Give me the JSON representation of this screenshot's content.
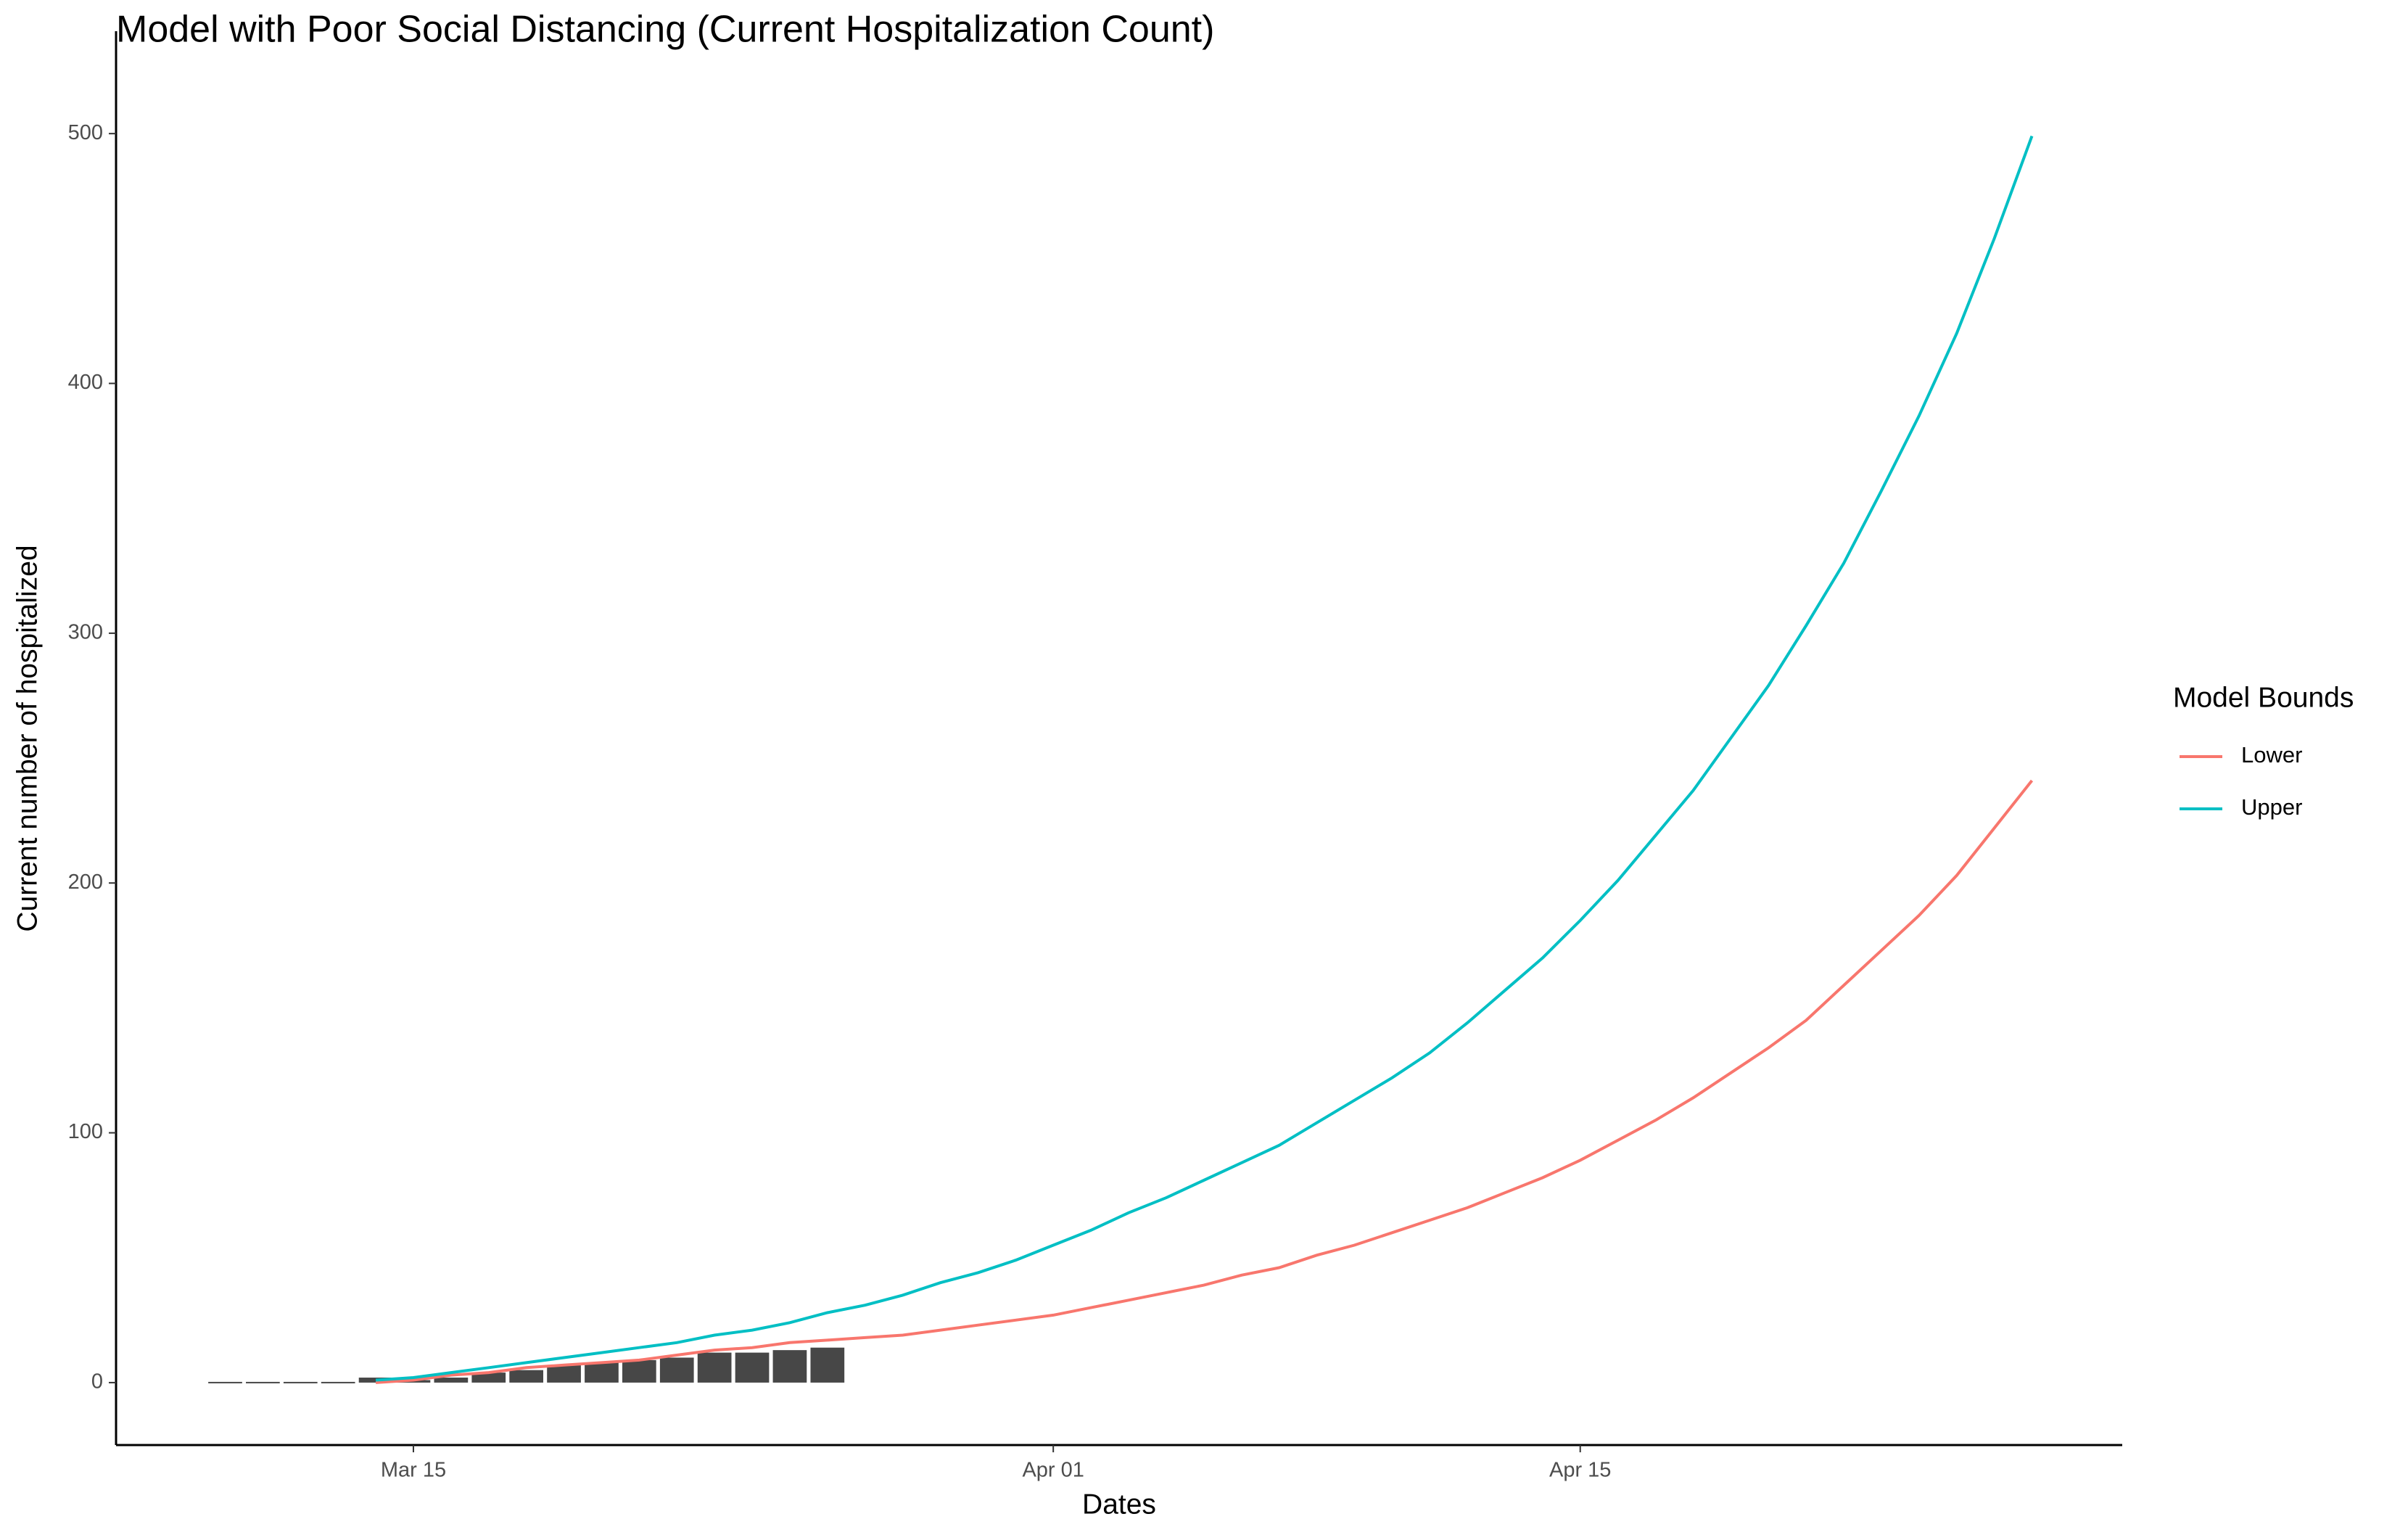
{
  "chart_data": {
    "type": "combo",
    "title": "Model with Poor Social Distancing (Current Hospitalization Count)",
    "x_label": "Dates",
    "y_label": "Current number of hospitalized",
    "legend_title": "Model Bounds",
    "legend_position": "right",
    "x": [
      "Mar 10",
      "Mar 11",
      "Mar 12",
      "Mar 13",
      "Mar 14",
      "Mar 15",
      "Mar 16",
      "Mar 17",
      "Mar 18",
      "Mar 19",
      "Mar 20",
      "Mar 21",
      "Mar 22",
      "Mar 23",
      "Mar 24",
      "Mar 25",
      "Mar 26",
      "Mar 27",
      "Mar 28",
      "Mar 29",
      "Mar 30",
      "Mar 31",
      "Apr 01",
      "Apr 02",
      "Apr 03",
      "Apr 04",
      "Apr 05",
      "Apr 06",
      "Apr 07",
      "Apr 08",
      "Apr 09",
      "Apr 10",
      "Apr 11",
      "Apr 12",
      "Apr 13",
      "Apr 14",
      "Apr 15",
      "Apr 16",
      "Apr 17",
      "Apr 18",
      "Apr 19",
      "Apr 20",
      "Apr 21",
      "Apr 22",
      "Apr 23",
      "Apr 24",
      "Apr 25",
      "Apr 26",
      "Apr 27"
    ],
    "bars": {
      "color": "#474747",
      "values": [
        0,
        0,
        0,
        0,
        2,
        1,
        2,
        4,
        5,
        7,
        8,
        9,
        10,
        12,
        12,
        13,
        14,
        null,
        null,
        null,
        null,
        null,
        null,
        null,
        null,
        null,
        null,
        null,
        null,
        null,
        null,
        null,
        null,
        null,
        null,
        null,
        null,
        null,
        null,
        null,
        null,
        null,
        null,
        null,
        null,
        null,
        null,
        null,
        null
      ]
    },
    "series": [
      {
        "name": "Lower",
        "color": "#F8766D",
        "values": [
          null,
          null,
          null,
          null,
          0,
          1,
          3,
          4,
          6,
          7,
          8,
          9,
          11,
          13,
          14,
          16,
          17,
          18,
          19,
          21,
          23,
          25,
          27,
          30,
          33,
          36,
          39,
          43,
          46,
          51,
          55,
          60,
          65,
          70,
          76,
          82,
          89,
          97,
          105,
          114,
          124,
          134,
          145,
          159,
          173,
          187,
          203,
          222,
          241
        ]
      },
      {
        "name": "Upper",
        "color": "#00BFC4",
        "values": [
          null,
          null,
          null,
          null,
          1,
          2,
          4,
          6,
          8,
          10,
          12,
          14,
          16,
          19,
          21,
          24,
          28,
          31,
          35,
          40,
          44,
          49,
          55,
          61,
          68,
          74,
          81,
          88,
          95,
          104,
          113,
          122,
          132,
          144,
          157,
          170,
          185,
          201,
          219,
          237,
          258,
          279,
          303,
          328,
          357,
          387,
          420,
          458,
          499
        ]
      }
    ],
    "xticks": [
      "Mar 15",
      "Apr 01",
      "Apr 15"
    ],
    "ylim": [
      -25,
      541
    ],
    "yticks": [
      0,
      100,
      200,
      300,
      400,
      500
    ]
  }
}
